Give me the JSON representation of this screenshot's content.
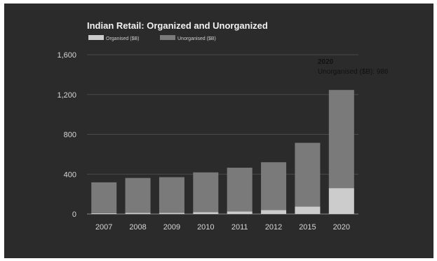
{
  "chart_data": {
    "type": "bar",
    "stacked": true,
    "title": "Indian Retail: Organized and Unorganized",
    "categories": [
      "2007",
      "2008",
      "2009",
      "2010",
      "2011",
      "2012",
      "2015",
      "2020"
    ],
    "series": [
      {
        "name": "Organised ($B)",
        "color": "#cccccc",
        "values": [
          8,
          12,
          12,
          18,
          25,
          40,
          75,
          260
        ]
      },
      {
        "name": "Unorganised ($B)",
        "color": "#7a7a7a",
        "values": [
          310,
          350,
          358,
          400,
          440,
          480,
          640,
          986
        ]
      }
    ],
    "yticks": [
      "0",
      "400",
      "800",
      "1,200",
      "1,600"
    ],
    "ylim": [
      0,
      1600
    ],
    "legend_position": "top",
    "tooltip": {
      "year": "2020",
      "text": "Unorganised ($B): 986"
    }
  }
}
